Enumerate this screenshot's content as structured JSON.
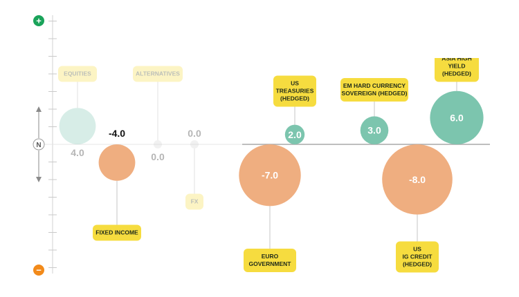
{
  "colors": {
    "positive": "#7cc5ae",
    "negative": "#efae80",
    "label_bg": "#f6dc3f",
    "label_text": "#1f2a1a",
    "value_text": "#ffffff",
    "plus_badge": "#1aa35a",
    "minus_badge": "#f28a1a",
    "axis": "#a8a8a8",
    "faded_value": "#b5b5b5"
  },
  "axis": {
    "plus_symbol": "+",
    "minus_symbol": "−",
    "neutral_symbol": "N"
  },
  "chart_data": {
    "type": "bubble",
    "title": "",
    "ylim": [
      -10,
      10
    ],
    "items": [
      {
        "label": "EQUITIES",
        "value": 4.0,
        "display": "4.0",
        "faded": true,
        "value_pos": "below"
      },
      {
        "label": "FIXED INCOME",
        "value": -4.0,
        "display": "-4.0",
        "faded": false,
        "value_pos": "above"
      },
      {
        "label": "ALTERNATIVES",
        "value": 0.0,
        "display": "0.0",
        "faded": true,
        "value_pos": "below"
      },
      {
        "label": "FX",
        "value": 0.0,
        "display": "0.0",
        "faded": true,
        "value_pos": "above"
      },
      {
        "label": "EURO\nGOVERNMENT",
        "value": -7.0,
        "display": "-7.0",
        "faded": false,
        "value_pos": "inside"
      },
      {
        "label": "US\nTREASURIES\n(HEDGED)",
        "value": 2.0,
        "display": "2.0",
        "faded": false,
        "value_pos": "inside"
      },
      {
        "label": "EM HARD CURRENCY\nSOVEREIGN (HEDGED)",
        "value": 3.0,
        "display": "3.0",
        "faded": false,
        "value_pos": "inside"
      },
      {
        "label": "US\nIG CREDIT\n(HEDGED)",
        "value": -8.0,
        "display": "-8.0",
        "faded": false,
        "value_pos": "inside"
      },
      {
        "label": "ASIA HIGH\nYIELD\n(HEDGED)",
        "value": 6.0,
        "display": "6.0",
        "faded": false,
        "value_pos": "inside"
      }
    ]
  }
}
